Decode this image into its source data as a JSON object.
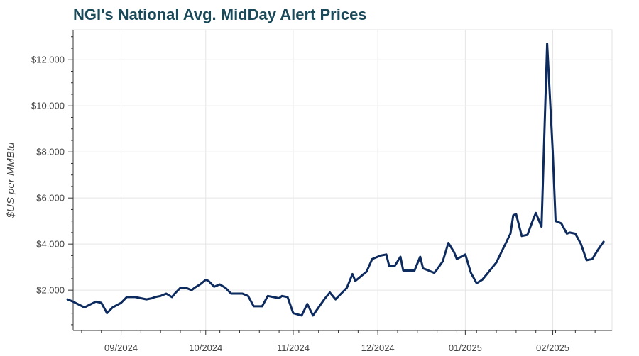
{
  "chart_data": {
    "type": "line",
    "title": "NGI's National Avg. MidDay Alert Prices",
    "xlabel": "",
    "ylabel": "$US per MMBtu",
    "x_tick_labels": [
      "09/2024",
      "10/2024",
      "11/2024",
      "12/2024",
      "01/2025",
      "02/2025"
    ],
    "x_ticks": [
      "2024-09-01",
      "2024-10-01",
      "2024-11-01",
      "2024-12-01",
      "2025-01-01",
      "2025-02-01"
    ],
    "y_tick_labels": [
      "$2.000",
      "$4.000",
      "$6.000",
      "$8.000",
      "$10.000",
      "$12.000"
    ],
    "y_ticks": [
      2,
      4,
      6,
      8,
      10,
      12
    ],
    "xlim": [
      "2024-08-15",
      "2025-02-22"
    ],
    "ylim": [
      0.25,
      13.3
    ],
    "grid": true,
    "color": "#0d2b5e",
    "series": [
      {
        "x": [
          "2024-08-13",
          "2024-08-15",
          "2024-08-19",
          "2024-08-23",
          "2024-08-25",
          "2024-08-27",
          "2024-08-29",
          "2024-09-01",
          "2024-09-03",
          "2024-09-06",
          "2024-09-08",
          "2024-09-10",
          "2024-09-12",
          "2024-09-13",
          "2024-09-15",
          "2024-09-17",
          "2024-09-19",
          "2024-09-20",
          "2024-09-22",
          "2024-09-24",
          "2024-09-26",
          "2024-09-27",
          "2024-09-29",
          "2024-10-01",
          "2024-10-02",
          "2024-10-04",
          "2024-10-06",
          "2024-10-08",
          "2024-10-10",
          "2024-10-12",
          "2024-10-14",
          "2024-10-16",
          "2024-10-18",
          "2024-10-19",
          "2024-10-21",
          "2024-10-23",
          "2024-10-25",
          "2024-10-27",
          "2024-10-28",
          "2024-10-30",
          "2024-11-01",
          "2024-11-04",
          "2024-11-06",
          "2024-11-08",
          "2024-11-10",
          "2024-11-12",
          "2024-11-14",
          "2024-11-16",
          "2024-11-18",
          "2024-11-20",
          "2024-11-22",
          "2024-11-23",
          "2024-11-25",
          "2024-11-27",
          "2024-11-29",
          "2024-12-02",
          "2024-12-04",
          "2024-12-05",
          "2024-12-07",
          "2024-12-09",
          "2024-12-10",
          "2024-12-12",
          "2024-12-14",
          "2024-12-16",
          "2024-12-17",
          "2024-12-19",
          "2024-12-21",
          "2024-12-22",
          "2024-12-24",
          "2024-12-26",
          "2024-12-28",
          "2024-12-29",
          "2025-01-01",
          "2025-01-03",
          "2025-01-05",
          "2025-01-07",
          "2025-01-09",
          "2025-01-10",
          "2025-01-12",
          "2025-01-14",
          "2025-01-17",
          "2025-01-18",
          "2025-01-19",
          "2025-01-21",
          "2025-01-23",
          "2025-01-25",
          "2025-01-26",
          "2025-01-28",
          "2025-01-30",
          "2025-02-01",
          "2025-02-02",
          "2025-02-04",
          "2025-02-06",
          "2025-02-07",
          "2025-02-09",
          "2025-02-11",
          "2025-02-13",
          "2025-02-15",
          "2025-02-17",
          "2025-02-19"
        ],
        "y": [
          1.6,
          1.5,
          1.25,
          1.5,
          1.45,
          1.0,
          1.25,
          1.45,
          1.7,
          1.7,
          1.65,
          1.6,
          1.65,
          1.7,
          1.75,
          1.85,
          1.7,
          1.85,
          2.1,
          2.1,
          2.0,
          2.1,
          2.25,
          2.45,
          2.4,
          2.15,
          2.25,
          2.1,
          1.85,
          1.85,
          1.85,
          1.75,
          1.3,
          1.3,
          1.3,
          1.75,
          1.7,
          1.65,
          1.75,
          1.7,
          1.0,
          0.9,
          1.4,
          0.9,
          1.25,
          1.6,
          1.9,
          1.6,
          1.85,
          2.1,
          2.7,
          2.4,
          2.6,
          2.8,
          3.35,
          3.5,
          3.55,
          3.05,
          3.05,
          3.45,
          2.85,
          2.85,
          2.85,
          3.45,
          2.95,
          2.85,
          2.75,
          2.9,
          3.25,
          4.05,
          3.65,
          3.35,
          3.55,
          2.75,
          2.3,
          2.45,
          2.75,
          2.9,
          3.2,
          3.7,
          4.45,
          5.25,
          5.3,
          4.35,
          4.4,
          5.05,
          5.35,
          4.75,
          12.7,
          8.0,
          5.0,
          4.9,
          4.45,
          4.5,
          4.45,
          4.0,
          3.3,
          3.35,
          3.75,
          4.1
        ]
      }
    ]
  }
}
